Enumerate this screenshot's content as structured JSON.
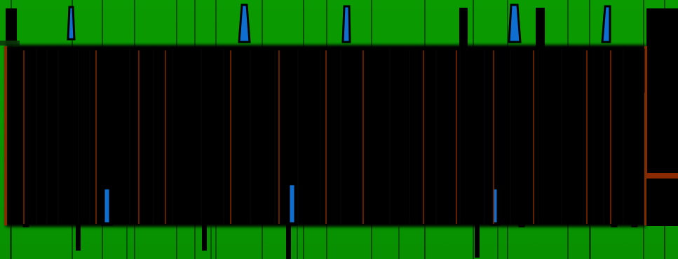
{
  "palette": {
    "background": "#0a9b00",
    "panel": "#000000",
    "accent": "#0f6fd0",
    "rust": "#8a2a00"
  },
  "scene": {
    "style": "abstract glitch pattern",
    "visible_text": []
  }
}
